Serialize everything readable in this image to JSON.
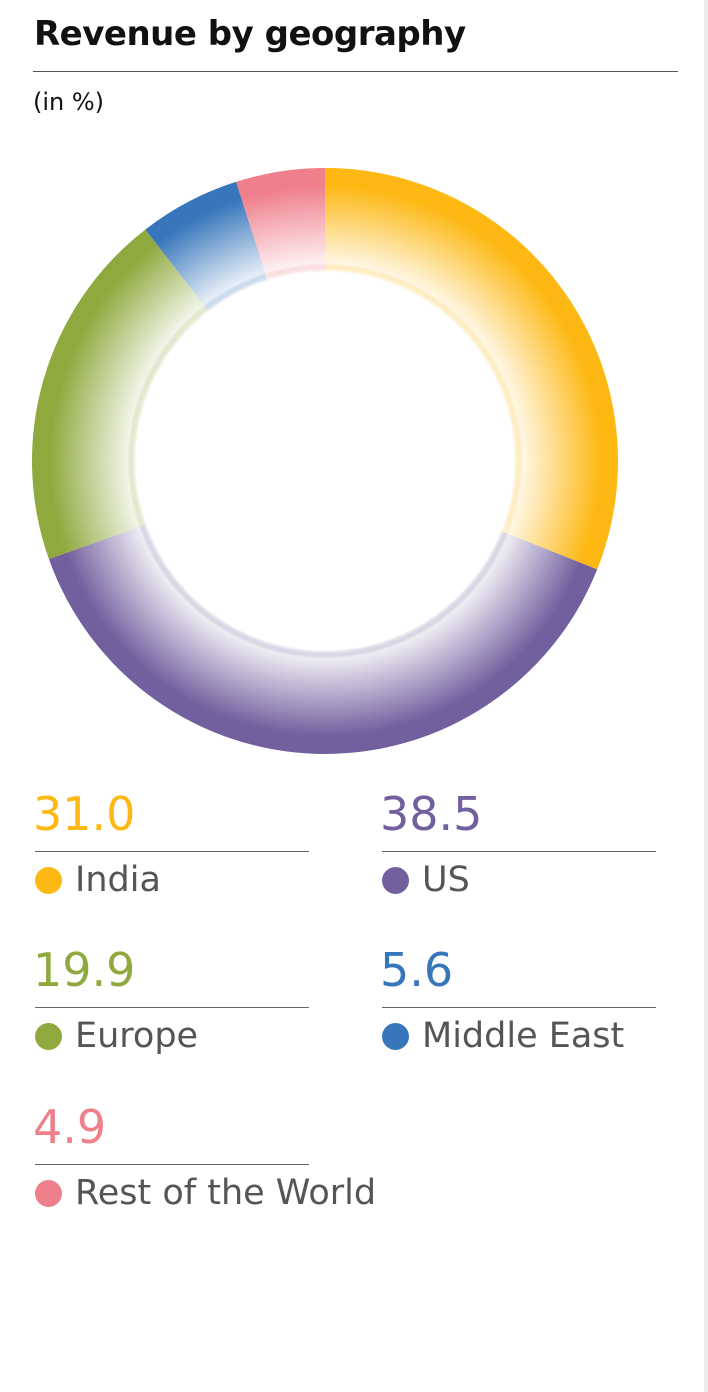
{
  "header": {
    "title": "Revenue by geography",
    "subtitle": "(in %)"
  },
  "chart_data": {
    "type": "pie",
    "donut": true,
    "title": "Revenue by geography",
    "subtitle": "(in %)",
    "slices": [
      {
        "label": "India",
        "value": 31.0,
        "display": "31.0",
        "color": "#FDB813"
      },
      {
        "label": "US",
        "value": 38.5,
        "display": "38.5",
        "color": "#725F9E"
      },
      {
        "label": "Europe",
        "value": 19.9,
        "display": "19.9",
        "color": "#8FA93E"
      },
      {
        "label": "Middle East",
        "value": 5.6,
        "display": "5.6",
        "color": "#3776BB"
      },
      {
        "label": "Rest of the World",
        "value": 4.9,
        "display": "4.9",
        "color": "#EF7F8B"
      }
    ],
    "legend_placement": "bottom"
  }
}
